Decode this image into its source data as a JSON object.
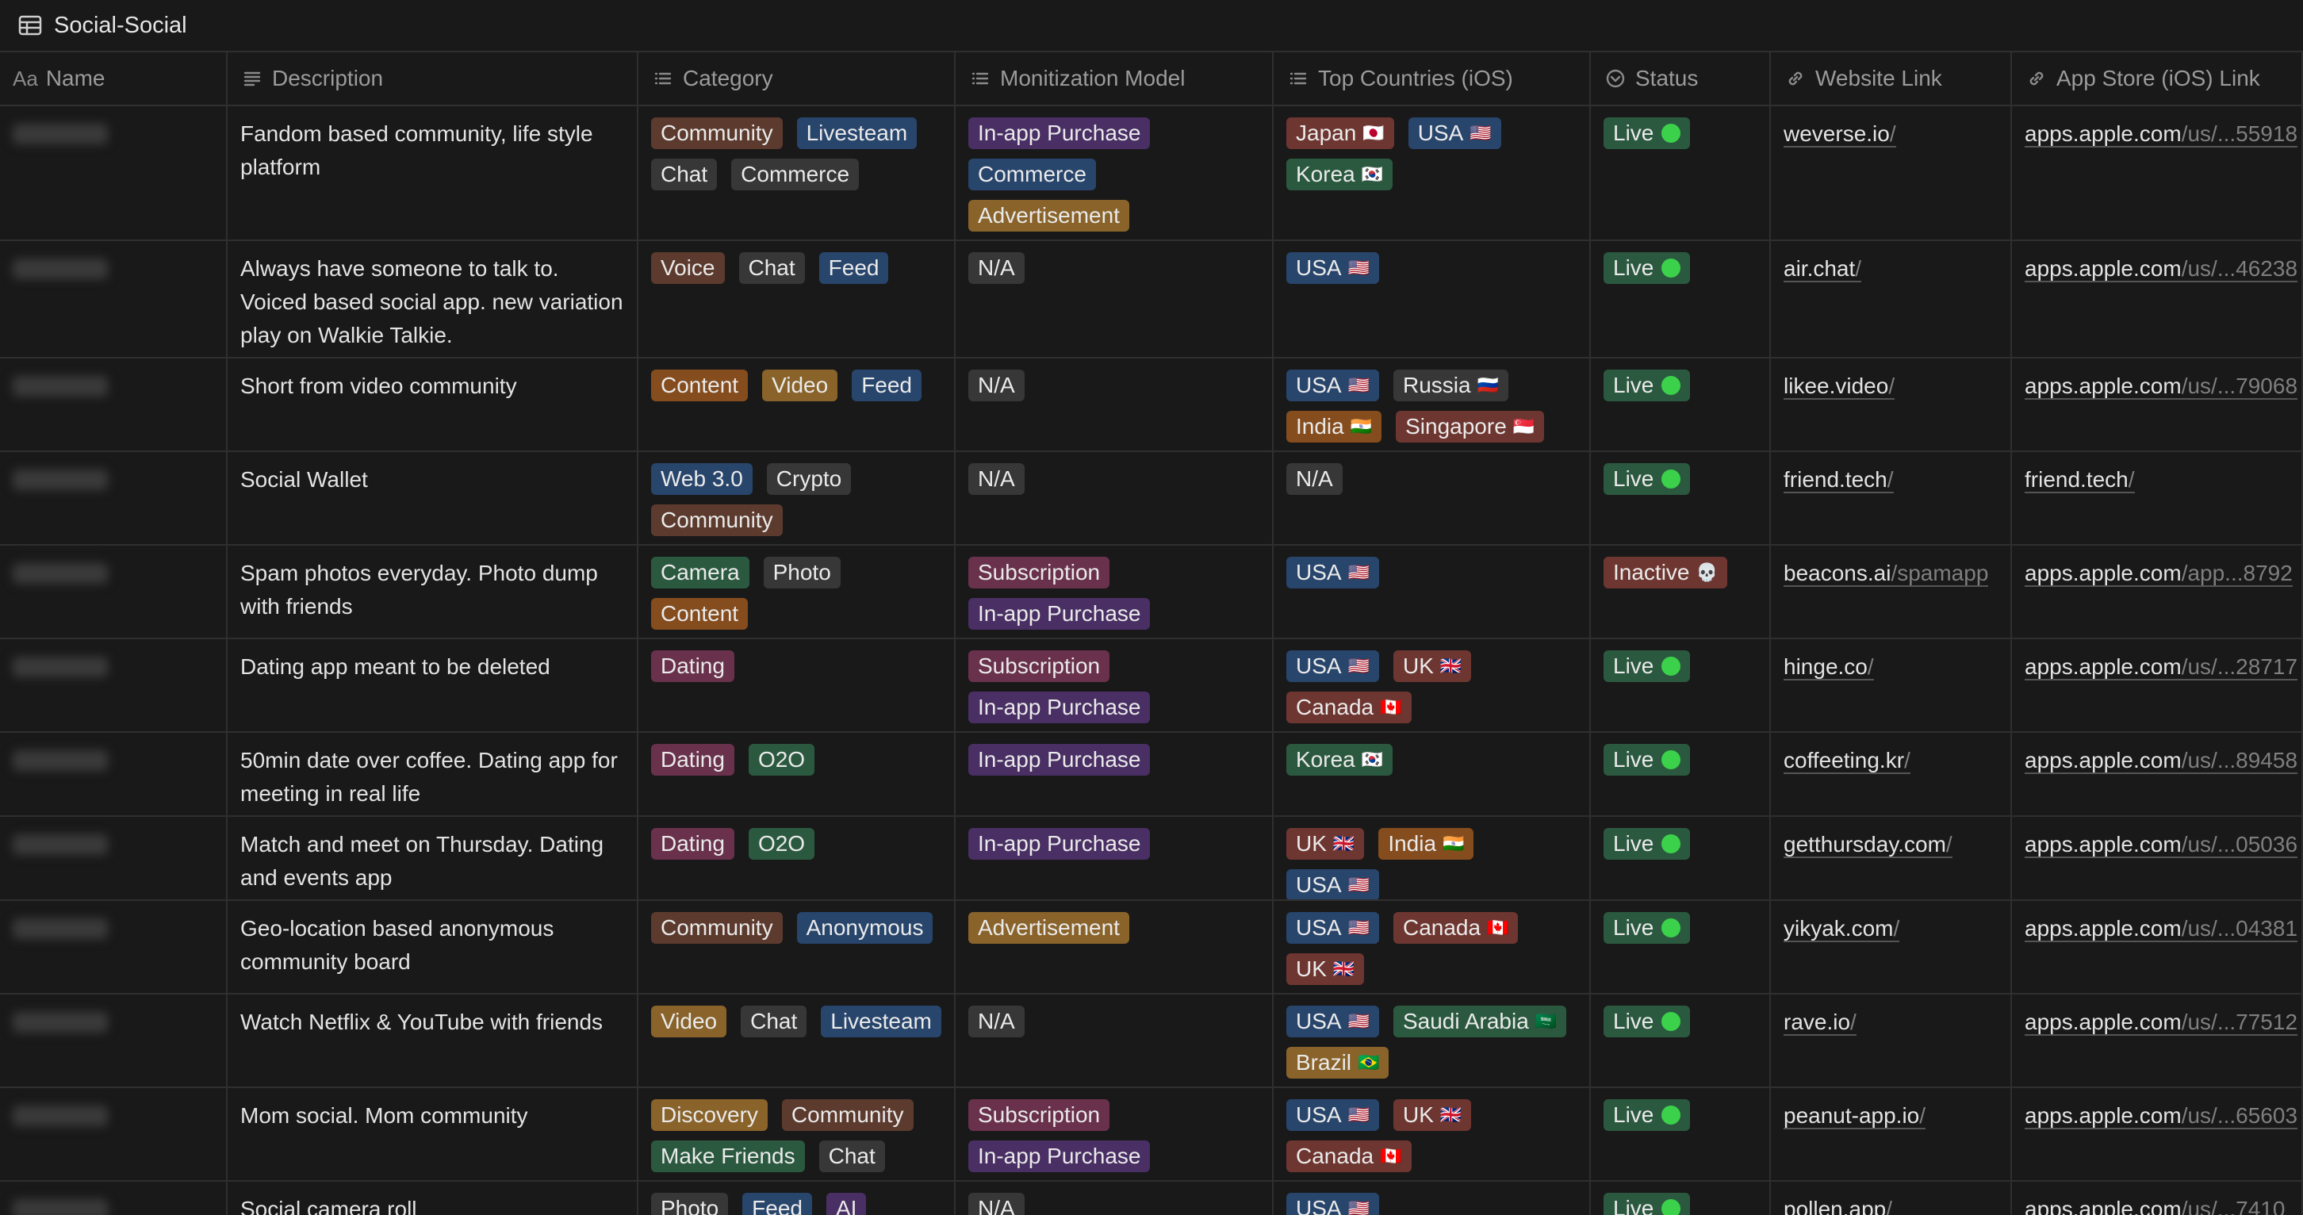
{
  "title": "Social-Social",
  "columns": [
    {
      "label": "Name",
      "icon": "aa-text-icon"
    },
    {
      "label": "Description",
      "icon": "lines-icon"
    },
    {
      "label": "Category",
      "icon": "list-icon"
    },
    {
      "label": "Monitization Model",
      "icon": "list-icon"
    },
    {
      "label": "Top Countries (iOS)",
      "icon": "list-icon"
    },
    {
      "label": "Status",
      "icon": "status-icon"
    },
    {
      "label": "Website Link",
      "icon": "link-icon"
    },
    {
      "label": "App Store (iOS) Link",
      "icon": "link-icon"
    }
  ],
  "colors": {
    "brown": "#5c3b2e",
    "blue": "#28456c",
    "gray": "#373737",
    "orange": "#854c1d",
    "purple": "#492f64",
    "yellow": "#89632a",
    "green": "#2b593f",
    "red": "#6e3630",
    "pink": "#69314c",
    "live": "#2b593f",
    "inactive": "#6e3630",
    "dot": "#3bd14a"
  },
  "rows": [
    {
      "description": "Fandom based community, life style platform",
      "category": [
        {
          "t": "Community",
          "c": "brown"
        },
        {
          "t": "Livesteam",
          "c": "blue"
        },
        {
          "t": "Chat",
          "c": "gray"
        },
        {
          "t": "Commerce",
          "c": "gray"
        }
      ],
      "monetization": [
        {
          "t": "In-app Purchase",
          "c": "purple"
        },
        {
          "t": "Commerce",
          "c": "blue"
        },
        {
          "t": "Advertisement",
          "c": "yellow"
        }
      ],
      "countries": [
        {
          "t": "Japan",
          "c": "red",
          "e": "🇯🇵"
        },
        {
          "t": "USA",
          "c": "blue",
          "e": "🇺🇸"
        },
        {
          "t": "Korea",
          "c": "green",
          "e": "🇰🇷"
        }
      ],
      "status": {
        "t": "Live",
        "c": "live",
        "mark": "dot"
      },
      "website": {
        "main": "weverse.io",
        "rest": "/"
      },
      "appstore": {
        "main": "apps.apple.com",
        "rest": "/us/...55918"
      }
    },
    {
      "description": "Always have someone to talk to. Voiced based social app. new variation play on Walkie Talkie.",
      "category": [
        {
          "t": "Voice",
          "c": "brown"
        },
        {
          "t": "Chat",
          "c": "gray"
        },
        {
          "t": "Feed",
          "c": "blue"
        }
      ],
      "monetization": [
        {
          "t": "N/A",
          "c": "gray"
        }
      ],
      "countries": [
        {
          "t": "USA",
          "c": "blue",
          "e": "🇺🇸"
        }
      ],
      "status": {
        "t": "Live",
        "c": "live",
        "mark": "dot"
      },
      "website": {
        "main": "air.chat",
        "rest": "/"
      },
      "appstore": {
        "main": "apps.apple.com",
        "rest": "/us/...46238"
      }
    },
    {
      "description": "Short from video community",
      "category": [
        {
          "t": "Content",
          "c": "orange"
        },
        {
          "t": "Video",
          "c": "yellow"
        },
        {
          "t": "Feed",
          "c": "blue"
        }
      ],
      "monetization": [
        {
          "t": "N/A",
          "c": "gray"
        }
      ],
      "countries": [
        {
          "t": "USA",
          "c": "blue",
          "e": "🇺🇸"
        },
        {
          "t": "Russia",
          "c": "gray",
          "e": "🇷🇺"
        },
        {
          "t": "India",
          "c": "orange",
          "e": "🇮🇳"
        },
        {
          "t": "Singapore",
          "c": "red",
          "e": "🇸🇬"
        }
      ],
      "status": {
        "t": "Live",
        "c": "live",
        "mark": "dot"
      },
      "website": {
        "main": "likee.video",
        "rest": "/"
      },
      "appstore": {
        "main": "apps.apple.com",
        "rest": "/us/...79068"
      }
    },
    {
      "description": "Social Wallet",
      "category": [
        {
          "t": "Web 3.0",
          "c": "blue"
        },
        {
          "t": "Crypto",
          "c": "gray"
        },
        {
          "t": "Community",
          "c": "brown"
        }
      ],
      "monetization": [
        {
          "t": "N/A",
          "c": "gray"
        }
      ],
      "countries": [
        {
          "t": "N/A",
          "c": "gray"
        }
      ],
      "status": {
        "t": "Live",
        "c": "live",
        "mark": "dot"
      },
      "website": {
        "main": "friend.tech",
        "rest": "/"
      },
      "appstore": {
        "main": "friend.tech",
        "rest": "/"
      }
    },
    {
      "description": "Spam photos everyday. Photo dump with friends",
      "category": [
        {
          "t": "Camera",
          "c": "green"
        },
        {
          "t": "Photo",
          "c": "gray"
        },
        {
          "t": "Content",
          "c": "orange"
        }
      ],
      "monetization": [
        {
          "t": "Subscription",
          "c": "pink"
        },
        {
          "t": "In-app Purchase",
          "c": "purple"
        }
      ],
      "countries": [
        {
          "t": "USA",
          "c": "blue",
          "e": "🇺🇸"
        }
      ],
      "status": {
        "t": "Inactive",
        "c": "inactive",
        "mark": "skull",
        "e": "💀"
      },
      "website": {
        "main": "beacons.ai",
        "rest": "/spamapp"
      },
      "appstore": {
        "main": "apps.apple.com",
        "rest": "/app...8792"
      }
    },
    {
      "description": "Dating app meant to be deleted",
      "category": [
        {
          "t": "Dating",
          "c": "pink"
        }
      ],
      "monetization": [
        {
          "t": "Subscription",
          "c": "pink"
        },
        {
          "t": "In-app Purchase",
          "c": "purple"
        }
      ],
      "countries": [
        {
          "t": "USA",
          "c": "blue",
          "e": "🇺🇸"
        },
        {
          "t": "UK",
          "c": "red",
          "e": "🇬🇧"
        },
        {
          "t": "Canada",
          "c": "red",
          "e": "🇨🇦"
        }
      ],
      "status": {
        "t": "Live",
        "c": "live",
        "mark": "dot"
      },
      "website": {
        "main": "hinge.co",
        "rest": "/"
      },
      "appstore": {
        "main": "apps.apple.com",
        "rest": "/us/...28717"
      }
    },
    {
      "description": "50min date over coffee. Dating app for meeting in real life",
      "category": [
        {
          "t": "Dating",
          "c": "pink"
        },
        {
          "t": "O2O",
          "c": "green"
        }
      ],
      "monetization": [
        {
          "t": "In-app Purchase",
          "c": "purple"
        }
      ],
      "countries": [
        {
          "t": "Korea",
          "c": "green",
          "e": "🇰🇷"
        }
      ],
      "status": {
        "t": "Live",
        "c": "live",
        "mark": "dot"
      },
      "website": {
        "main": "coffeeting.kr",
        "rest": "/"
      },
      "appstore": {
        "main": "apps.apple.com",
        "rest": "/us/...89458"
      }
    },
    {
      "description": "Match and meet on Thursday. Dating and events app",
      "category": [
        {
          "t": "Dating",
          "c": "pink"
        },
        {
          "t": "O2O",
          "c": "green"
        }
      ],
      "monetization": [
        {
          "t": "In-app Purchase",
          "c": "purple"
        }
      ],
      "countries": [
        {
          "t": "UK",
          "c": "red",
          "e": "🇬🇧"
        },
        {
          "t": "India",
          "c": "orange",
          "e": "🇮🇳"
        },
        {
          "t": "USA",
          "c": "blue",
          "e": "🇺🇸"
        }
      ],
      "status": {
        "t": "Live",
        "c": "live",
        "mark": "dot"
      },
      "website": {
        "main": "getthursday.com",
        "rest": "/"
      },
      "appstore": {
        "main": "apps.apple.com",
        "rest": "/us/...05036"
      }
    },
    {
      "description": "Geo-location based anonymous community board",
      "category": [
        {
          "t": "Community",
          "c": "brown"
        },
        {
          "t": "Anonymous",
          "c": "blue"
        }
      ],
      "monetization": [
        {
          "t": "Advertisement",
          "c": "yellow"
        }
      ],
      "countries": [
        {
          "t": "USA",
          "c": "blue",
          "e": "🇺🇸"
        },
        {
          "t": "Canada",
          "c": "red",
          "e": "🇨🇦"
        },
        {
          "t": "UK",
          "c": "red",
          "e": "🇬🇧"
        }
      ],
      "status": {
        "t": "Live",
        "c": "live",
        "mark": "dot"
      },
      "website": {
        "main": "yikyak.com",
        "rest": "/"
      },
      "appstore": {
        "main": "apps.apple.com",
        "rest": "/us/...04381"
      }
    },
    {
      "description": "Watch Netflix & YouTube with friends",
      "category": [
        {
          "t": "Video",
          "c": "yellow"
        },
        {
          "t": "Chat",
          "c": "gray"
        },
        {
          "t": "Livesteam",
          "c": "blue"
        }
      ],
      "monetization": [
        {
          "t": "N/A",
          "c": "gray"
        }
      ],
      "countries": [
        {
          "t": "USA",
          "c": "blue",
          "e": "🇺🇸"
        },
        {
          "t": "Saudi Arabia",
          "c": "green",
          "e": "🇸🇦"
        },
        {
          "t": "Brazil",
          "c": "yellow",
          "e": "🇧🇷"
        }
      ],
      "status": {
        "t": "Live",
        "c": "live",
        "mark": "dot"
      },
      "website": {
        "main": "rave.io",
        "rest": "/"
      },
      "appstore": {
        "main": "apps.apple.com",
        "rest": "/us/...77512"
      }
    },
    {
      "description": "Mom social. Mom community",
      "category": [
        {
          "t": "Discovery",
          "c": "yellow"
        },
        {
          "t": "Community",
          "c": "brown"
        },
        {
          "t": "Make Friends",
          "c": "green"
        },
        {
          "t": "Chat",
          "c": "gray"
        }
      ],
      "monetization": [
        {
          "t": "Subscription",
          "c": "pink"
        },
        {
          "t": "In-app Purchase",
          "c": "purple"
        }
      ],
      "countries": [
        {
          "t": "USA",
          "c": "blue",
          "e": "🇺🇸"
        },
        {
          "t": "UK",
          "c": "red",
          "e": "🇬🇧"
        },
        {
          "t": "Canada",
          "c": "red",
          "e": "🇨🇦"
        }
      ],
      "status": {
        "t": "Live",
        "c": "live",
        "mark": "dot"
      },
      "website": {
        "main": "peanut-app.io",
        "rest": "/"
      },
      "appstore": {
        "main": "apps.apple.com",
        "rest": "/us/...65603"
      }
    },
    {
      "description": "Social camera roll",
      "category": [
        {
          "t": "Photo",
          "c": "gray"
        },
        {
          "t": "Feed",
          "c": "blue"
        },
        {
          "t": "AI",
          "c": "purple"
        }
      ],
      "monetization": [
        {
          "t": "N/A",
          "c": "gray"
        }
      ],
      "countries": [
        {
          "t": "USA",
          "c": "blue",
          "e": "🇺🇸"
        }
      ],
      "status": {
        "t": "Live",
        "c": "live",
        "mark": "dot"
      },
      "website": {
        "main": "pollen.app",
        "rest": "/"
      },
      "appstore": {
        "main": "apps.apple.com",
        "rest": "/us/...7410"
      }
    }
  ]
}
